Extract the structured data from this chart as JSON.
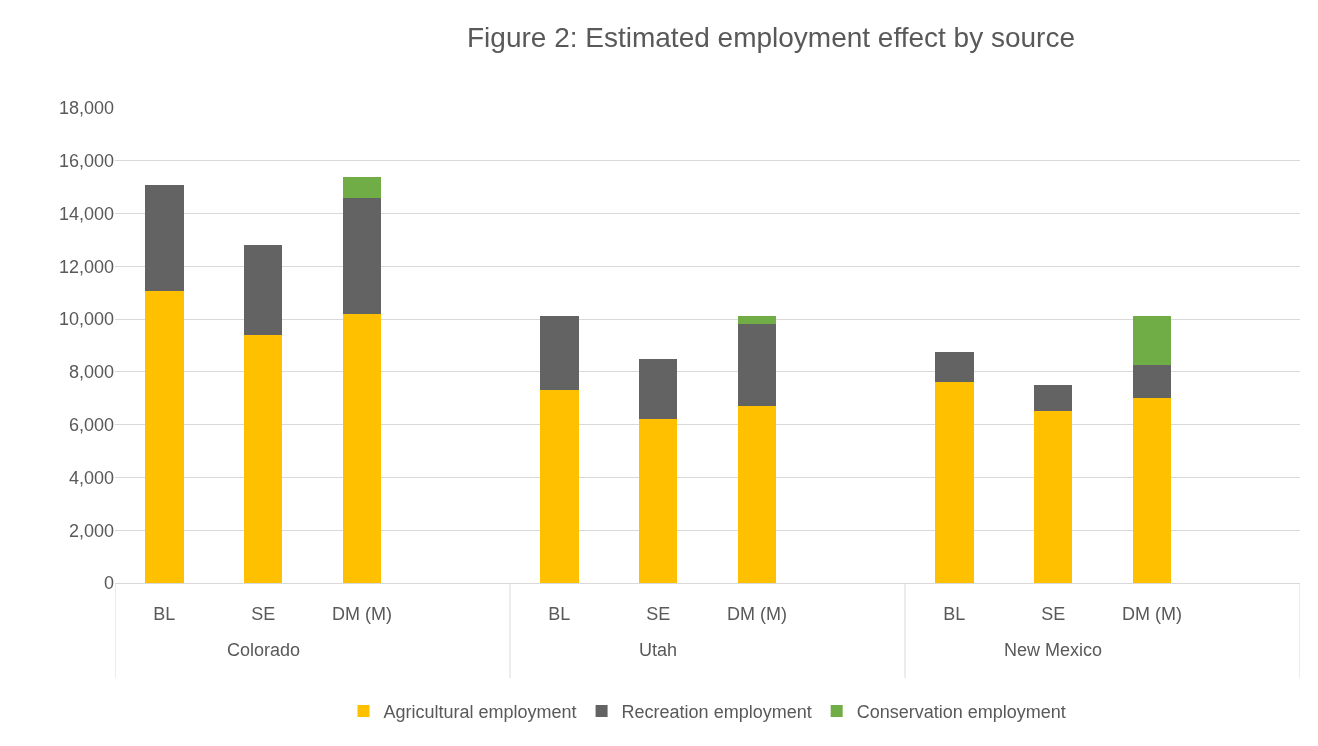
{
  "chart_data": {
    "type": "bar",
    "title": "Figure 2: Estimated employment effect by source",
    "categories": [
      "BL",
      "SE",
      "DM (M)",
      null,
      "BL",
      "SE",
      "DM (M)",
      null,
      "BL",
      "SE",
      "DM (M)",
      null
    ],
    "series": [
      {
        "name": "Agricultural employment",
        "color": "#ffc000",
        "values": [
          11050,
          9400,
          10200,
          null,
          7300,
          6200,
          6700,
          null,
          7600,
          6500,
          7000,
          null
        ]
      },
      {
        "name": "Recreation employment",
        "color": "#636363",
        "values": [
          4050,
          3400,
          4400,
          null,
          2800,
          2300,
          3100,
          null,
          1150,
          1000,
          1250,
          null
        ]
      },
      {
        "name": "Conservation employment",
        "color": "#70ad47",
        "values": [
          null,
          null,
          800,
          null,
          null,
          null,
          300,
          null,
          null,
          null,
          1850,
          null
        ]
      }
    ],
    "stacked": true,
    "ylim": [
      0,
      18000
    ],
    "yticks": [
      {
        "value": 0,
        "label": "0"
      },
      {
        "value": 2000,
        "label": "2,000"
      },
      {
        "value": 4000,
        "label": "4,000"
      },
      {
        "value": 6000,
        "label": "6,000"
      },
      {
        "value": 8000,
        "label": "8,000"
      },
      {
        "value": 10000,
        "label": "10,000"
      },
      {
        "value": 12000,
        "label": "12,000"
      },
      {
        "value": 14000,
        "label": "14,000"
      },
      {
        "value": 16000,
        "label": "16,000"
      },
      {
        "value": 18000,
        "label": "18,000"
      }
    ],
    "grid": "y",
    "legend": "bottom",
    "annotations": [
      "Colorado",
      "Utah",
      "New Mexico"
    ]
  }
}
